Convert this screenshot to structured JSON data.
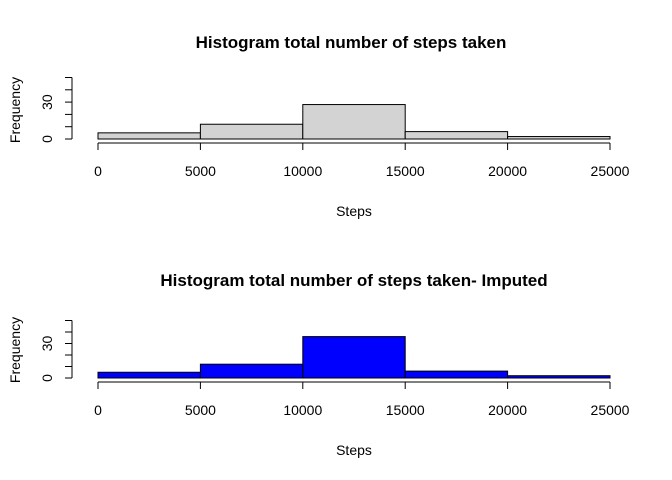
{
  "chart_data": [
    {
      "type": "bar",
      "title": "Histogram total number of steps taken",
      "xlabel": "Steps",
      "ylabel": "Frequency",
      "bins": [
        [
          0,
          5000
        ],
        [
          5000,
          10000
        ],
        [
          10000,
          15000
        ],
        [
          15000,
          20000
        ],
        [
          20000,
          25000
        ]
      ],
      "values": [
        5,
        12,
        28,
        6,
        2
      ],
      "xlim": [
        0,
        25000
      ],
      "ylim": [
        0,
        50
      ],
      "xticks": [
        "0",
        "5000",
        "10000",
        "15000",
        "20000",
        "25000"
      ],
      "yticks": [
        "0",
        "30"
      ],
      "fill_color": "#d3d3d3",
      "grid": false
    },
    {
      "type": "bar",
      "title": "Histogram total number of steps taken- Imputed",
      "xlabel": "Steps",
      "ylabel": "Frequency",
      "bins": [
        [
          0,
          5000
        ],
        [
          5000,
          10000
        ],
        [
          10000,
          15000
        ],
        [
          15000,
          20000
        ],
        [
          20000,
          25000
        ]
      ],
      "values": [
        5,
        12,
        36,
        6,
        2
      ],
      "xlim": [
        0,
        25000
      ],
      "ylim": [
        0,
        50
      ],
      "xticks": [
        "0",
        "5000",
        "10000",
        "15000",
        "20000",
        "25000"
      ],
      "yticks": [
        "0",
        "30"
      ],
      "fill_color": "#0000ff",
      "grid": false
    }
  ]
}
